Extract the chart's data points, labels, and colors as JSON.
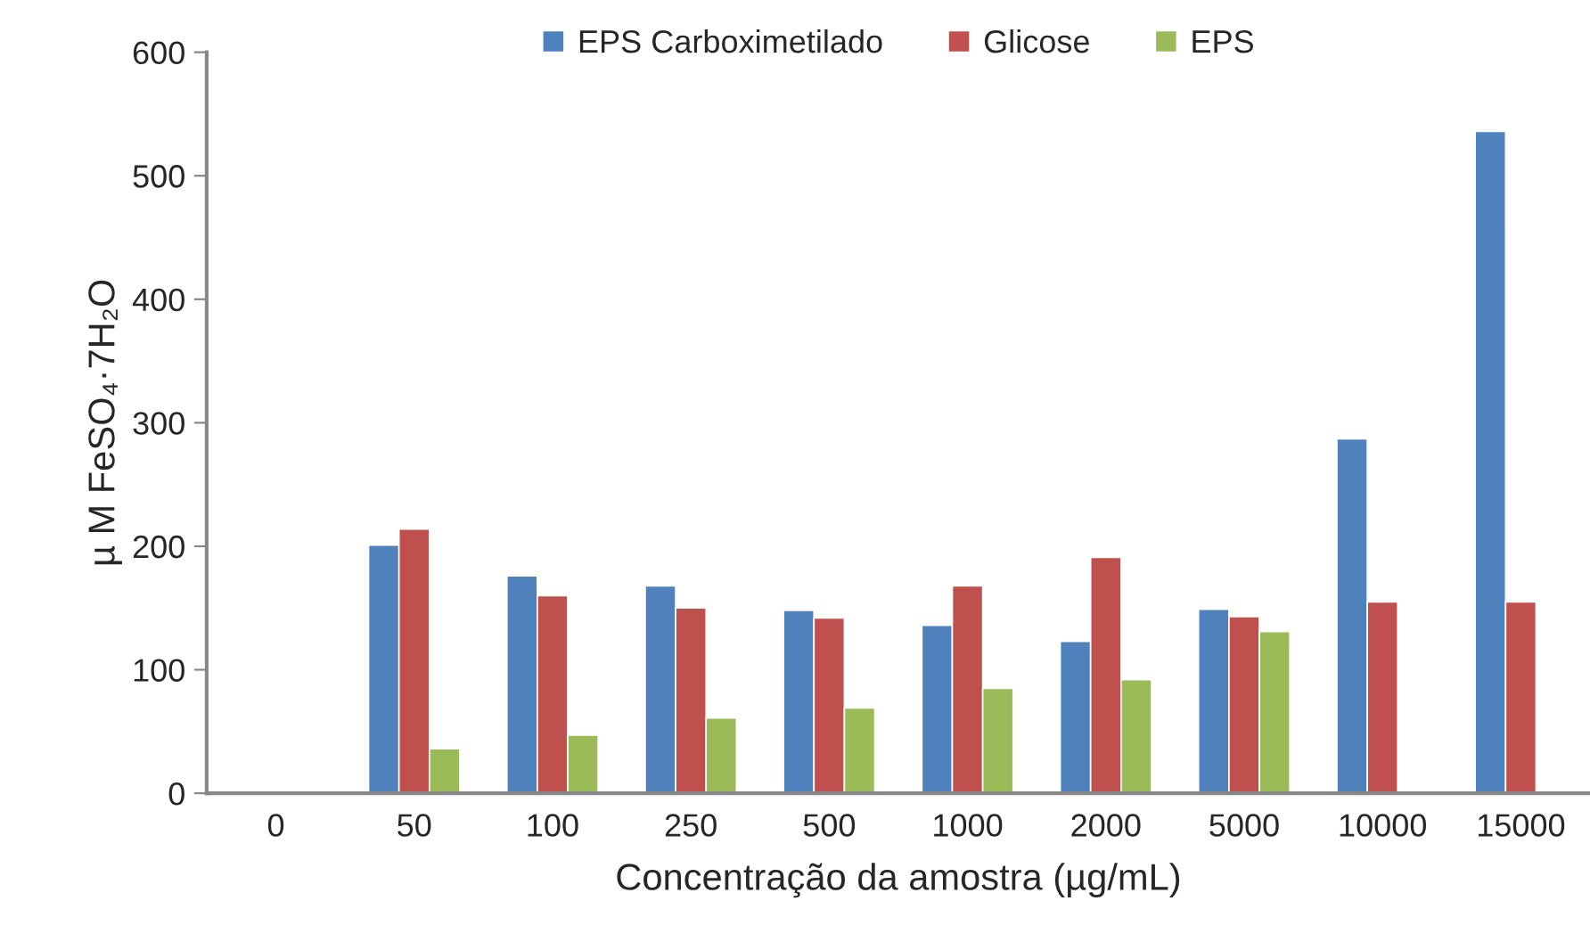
{
  "chart_data": {
    "type": "bar",
    "xlabel": "Concentração da amostra (µg/mL)",
    "ylabel": "µ M FeSO₄·7H₂O",
    "categories": [
      "0",
      "50",
      "100",
      "250",
      "500",
      "1000",
      "2000",
      "5000",
      "10000",
      "15000"
    ],
    "series": [
      {
        "name": "EPS Carboximetilado",
        "color": "#4f81bd",
        "values": [
          null,
          201,
          176,
          168,
          148,
          136,
          123,
          149,
          287,
          536
        ]
      },
      {
        "name": "Glicose",
        "color": "#c0504d",
        "values": [
          null,
          214,
          160,
          150,
          142,
          168,
          191,
          143,
          155,
          155
        ]
      },
      {
        "name": "EPS",
        "color": "#9bbb59",
        "values": [
          null,
          36,
          47,
          61,
          69,
          85,
          92,
          131,
          null,
          null
        ]
      }
    ],
    "ylim": [
      0,
      600
    ],
    "yticks": [
      0,
      100,
      200,
      300,
      400,
      500,
      600
    ],
    "grid": false,
    "legend": "top"
  }
}
